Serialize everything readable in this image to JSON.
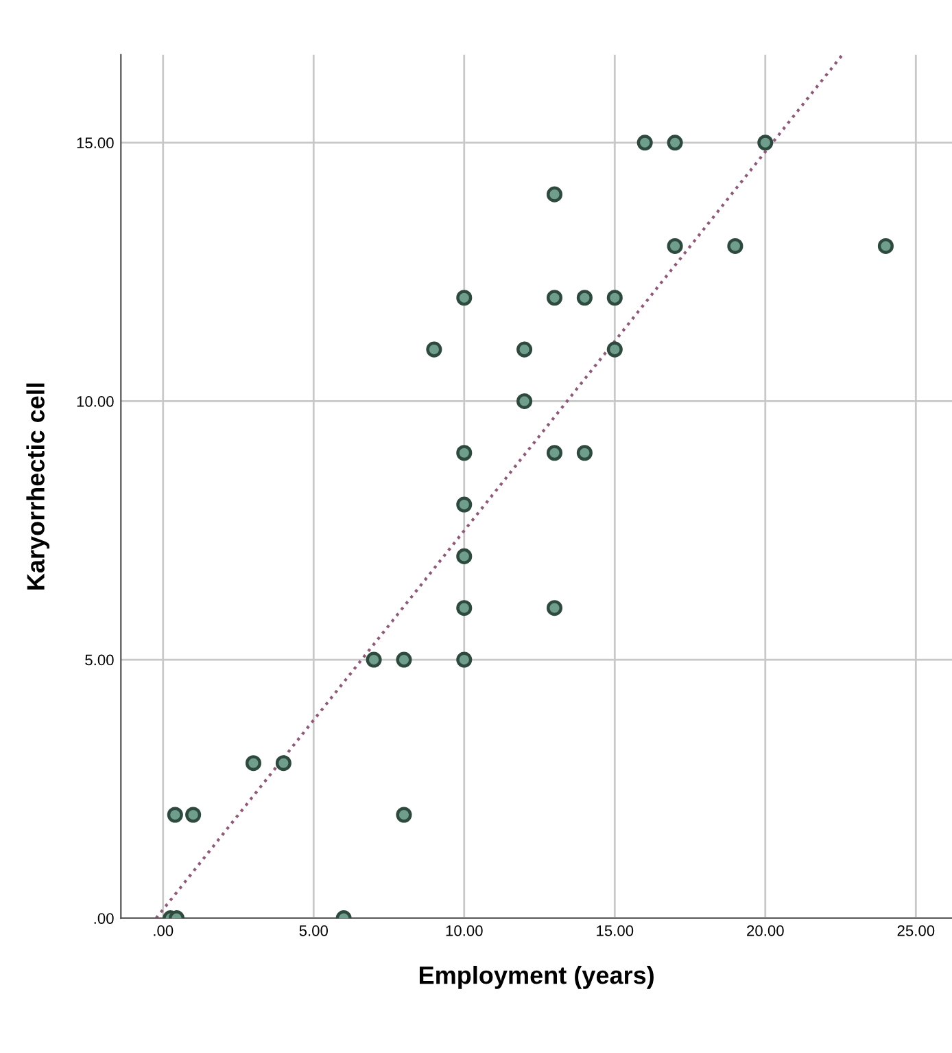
{
  "chart_data": {
    "type": "scatter",
    "xlabel": "Employment (years)",
    "ylabel": "Karyorrhectic cell",
    "xlim": [
      -1.4,
      26.2
    ],
    "ylim": [
      0,
      16.7
    ],
    "xticks": [
      {
        "value": 0,
        "label": ".00"
      },
      {
        "value": 5,
        "label": "5.00"
      },
      {
        "value": 10,
        "label": "10.00"
      },
      {
        "value": 15,
        "label": "15.00"
      },
      {
        "value": 20,
        "label": "20.00"
      },
      {
        "value": 25,
        "label": "25.00"
      }
    ],
    "yticks": [
      {
        "value": 0,
        "label": ".00"
      },
      {
        "value": 5,
        "label": "5.00"
      },
      {
        "value": 10,
        "label": "10.00"
      },
      {
        "value": 15,
        "label": "15.00"
      }
    ],
    "grid": true,
    "series": [
      {
        "marker": "circle",
        "color": "#6f9f8c",
        "x": [
          0.25,
          0.45,
          0.4,
          1,
          3,
          4,
          6,
          7,
          8,
          8,
          9,
          10,
          10,
          10,
          10,
          10,
          10,
          12,
          12,
          13,
          13,
          13,
          13,
          14,
          14,
          15,
          15,
          16,
          17,
          17,
          19,
          20,
          24
        ],
        "values": [
          0,
          0,
          2,
          2,
          3,
          3,
          0,
          5,
          5,
          2,
          11,
          12,
          9,
          8,
          7,
          6,
          5,
          11,
          10,
          14,
          12,
          9,
          6,
          12,
          9,
          12,
          11,
          15,
          15,
          13,
          13,
          15,
          13
        ]
      },
      {
        "type": "line",
        "color": "#8e5a7a",
        "line_style": "dotted",
        "x": [
          -0.23,
          22.56
        ],
        "values": [
          0,
          16.7
        ]
      }
    ]
  }
}
